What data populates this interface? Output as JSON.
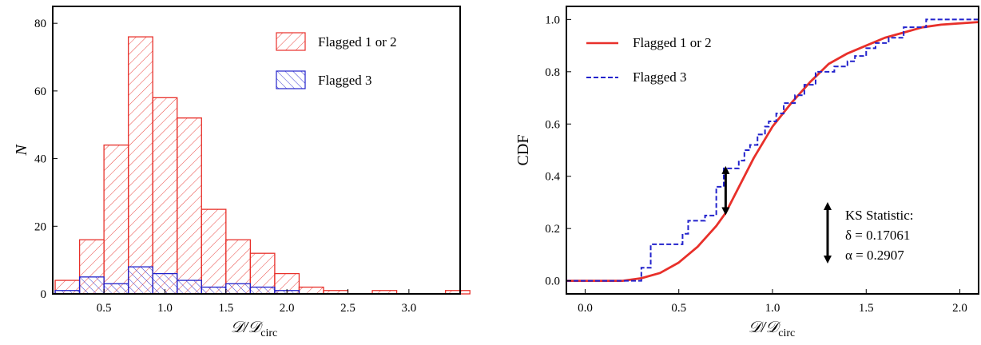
{
  "chart_data": [
    {
      "type": "histogram",
      "xlabel": "𝒟/𝒟",
      "xlabel_sub": "circ",
      "ylabel": "N",
      "xlim": [
        0.08,
        3.42
      ],
      "ylim": [
        0,
        85
      ],
      "x_ticks": [
        0.5,
        1.0,
        1.5,
        2.0,
        2.5,
        3.0
      ],
      "x_tick_labels": [
        "0.5",
        "1.0",
        "1.5",
        "2.0",
        "2.5",
        "3.0"
      ],
      "y_ticks": [
        0,
        20,
        40,
        60,
        80
      ],
      "y_tick_labels": [
        "0",
        "20",
        "40",
        "60",
        "80"
      ],
      "bin_width": 0.1,
      "legend_position": "top-right",
      "series": [
        {
          "name": "Flagged 1 or 2",
          "color": "#e8302a",
          "hatch": "diagonal-forward",
          "bin_starts": [
            0.1,
            0.3,
            0.5,
            0.7,
            0.9,
            1.1,
            1.3,
            1.5,
            1.7,
            1.9,
            2.1,
            2.3,
            2.5,
            2.7,
            2.9,
            3.1,
            3.3
          ],
          "bin_width": 0.2,
          "counts": [
            4,
            16,
            44,
            76,
            58,
            52,
            25,
            16,
            12,
            6,
            2,
            1,
            0,
            1,
            0,
            0,
            1
          ]
        },
        {
          "name": "Flagged 3",
          "color": "#2222cc",
          "hatch": "diagonal-back",
          "bin_starts": [
            0.1,
            0.3,
            0.5,
            0.7,
            0.9,
            1.1,
            1.3,
            1.5,
            1.7,
            1.9
          ],
          "bin_width": 0.2,
          "counts": [
            1,
            5,
            3,
            8,
            6,
            4,
            2,
            3,
            2,
            1
          ]
        }
      ]
    },
    {
      "type": "line",
      "xlabel": "𝒟/𝒟",
      "xlabel_sub": "circ",
      "ylabel": "CDF",
      "xlim": [
        -0.1,
        2.1
      ],
      "ylim": [
        -0.05,
        1.05
      ],
      "x_ticks": [
        0.0,
        0.5,
        1.0,
        1.5,
        2.0
      ],
      "x_tick_labels": [
        "0.0",
        "0.5",
        "1.0",
        "1.5",
        "2.0"
      ],
      "y_ticks": [
        0.0,
        0.2,
        0.4,
        0.6,
        0.8,
        1.0
      ],
      "y_tick_labels": [
        "0.0",
        "0.2",
        "0.4",
        "0.6",
        "0.8",
        "1.0"
      ],
      "legend_position": "top-left",
      "series": [
        {
          "name": "Flagged 1 or 2",
          "color": "#e8302a",
          "style": "solid",
          "x": [
            -0.1,
            0.2,
            0.3,
            0.4,
            0.5,
            0.6,
            0.7,
            0.75,
            0.8,
            0.9,
            1.0,
            1.1,
            1.2,
            1.3,
            1.4,
            1.5,
            1.6,
            1.7,
            1.8,
            1.9,
            2.0,
            2.1
          ],
          "y": [
            0.0,
            0.0,
            0.01,
            0.03,
            0.07,
            0.13,
            0.21,
            0.26,
            0.33,
            0.47,
            0.59,
            0.68,
            0.76,
            0.83,
            0.87,
            0.9,
            0.93,
            0.95,
            0.97,
            0.98,
            0.985,
            0.99
          ]
        },
        {
          "name": "Flagged 3",
          "color": "#2222cc",
          "style": "dashed",
          "steps_x": [
            -0.1,
            0.29,
            0.3,
            0.35,
            0.45,
            0.52,
            0.55,
            0.6,
            0.64,
            0.7,
            0.74,
            0.78,
            0.82,
            0.85,
            0.88,
            0.92,
            0.96,
            0.98,
            1.02,
            1.06,
            1.12,
            1.17,
            1.23,
            1.27,
            1.33,
            1.4,
            1.44,
            1.5,
            1.55,
            1.62,
            1.7,
            1.82,
            2.1
          ],
          "steps_y": [
            0.0,
            0.0,
            0.05,
            0.14,
            0.14,
            0.18,
            0.23,
            0.23,
            0.25,
            0.36,
            0.43,
            0.43,
            0.46,
            0.5,
            0.52,
            0.56,
            0.59,
            0.61,
            0.64,
            0.68,
            0.71,
            0.75,
            0.8,
            0.8,
            0.82,
            0.84,
            0.86,
            0.89,
            0.91,
            0.93,
            0.97,
            1.0,
            1.0
          ]
        }
      ],
      "annotations": {
        "ks_arrow_x": 0.75,
        "ks_arrow_y_low": 0.26,
        "ks_arrow_y_high": 0.43,
        "ks_title": "KS Statistic:",
        "ks_delta": "δ = 0.17061",
        "ks_alpha": "α = 0.2907"
      }
    }
  ]
}
